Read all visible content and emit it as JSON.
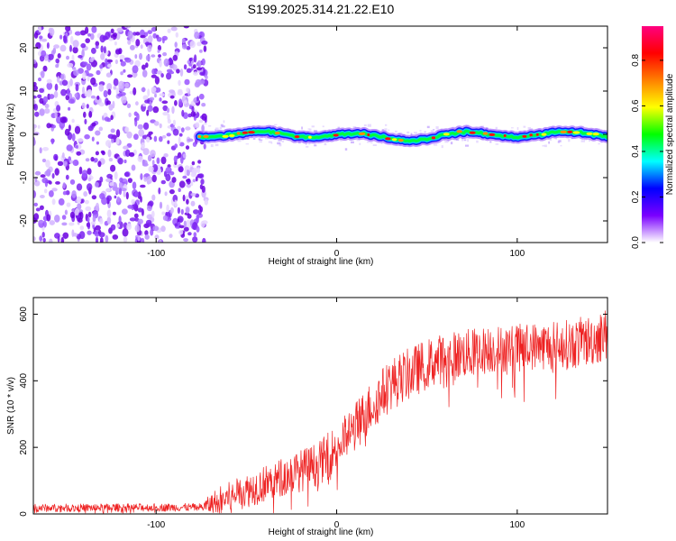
{
  "figure_title": "S199.2025.314.21.22.E10",
  "chart_data": [
    {
      "type": "heatmap",
      "name": "spectrogram",
      "xlabel": "Height of straight line (km)",
      "ylabel": "Frequency (Hz)",
      "xlim": [
        -168,
        150
      ],
      "ylim": [
        -25,
        25
      ],
      "xticks": [
        -100,
        0,
        100
      ],
      "yticks": [
        20,
        10,
        0,
        -10,
        -20
      ],
      "noise_region_x": [
        -168,
        -72
      ],
      "signal_onset_x": -72,
      "signal_freq_hz": 0,
      "signal_x_range": [
        -76,
        150
      ],
      "colorbar": {
        "label": "Normalized spectral amplitude",
        "range": [
          0.0,
          0.95
        ],
        "ticks": [
          0.0,
          0.2,
          0.4,
          0.6,
          0.8
        ],
        "colors": [
          "#ffffff",
          "#7a00ff",
          "#0000ff",
          "#00ffff",
          "#00ff00",
          "#ffff00",
          "#ff8000",
          "#ff0000",
          "#ff0080"
        ]
      }
    },
    {
      "type": "line",
      "name": "snr",
      "xlabel": "Height of straight line (km)",
      "ylabel": "SNR (10 * v/v)",
      "xlim": [
        -168,
        150
      ],
      "ylim": [
        0,
        650
      ],
      "xticks": [
        -100,
        0,
        100
      ],
      "yticks": [
        0,
        200,
        400,
        600
      ],
      "color": "#ee2222",
      "trend": {
        "x": [
          -168,
          -75,
          -66,
          -50,
          -30,
          -10,
          0,
          10,
          20,
          30,
          40,
          50,
          60,
          70,
          80,
          90,
          100,
          110,
          120,
          130,
          140,
          150
        ],
        "y": [
          18,
          20,
          35,
          70,
          110,
          150,
          200,
          260,
          330,
          390,
          420,
          450,
          470,
          480,
          490,
          495,
          500,
          505,
          505,
          510,
          520,
          540
        ]
      },
      "noise_amplitude": {
        "x": [
          -168,
          -75,
          -66,
          -30,
          0,
          30,
          60,
          100,
          150
        ],
        "y": [
          12,
          12,
          45,
          60,
          70,
          80,
          75,
          70,
          80
        ]
      }
    }
  ]
}
